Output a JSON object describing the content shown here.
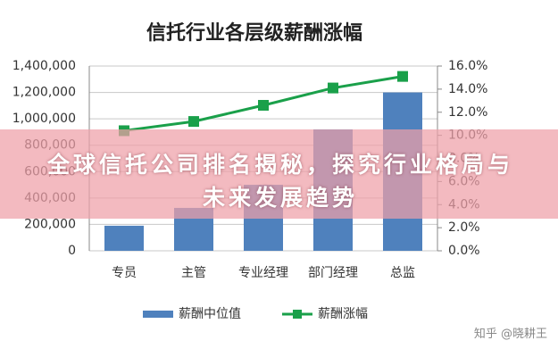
{
  "chart_data": {
    "type": "bar_line",
    "title": "信托行业各层级薪酬涨幅",
    "categories": [
      "专员",
      "主管",
      "专业经理",
      "部门经理",
      "总监"
    ],
    "series": [
      {
        "name": "薪酬中位值",
        "color": "#4f81bd",
        "values": [
          190000,
          325000,
          500000,
          920000,
          1200000
        ]
      },
      {
        "name": "薪酬涨幅",
        "color": "#1aa04a",
        "axis": "y2",
        "values": [
          10.4,
          11.2,
          12.6,
          14.1,
          15.1
        ]
      }
    ],
    "ylim": [
      0,
      1400000
    ],
    "yticks": [
      0,
      {
        "value": 200000,
        "label": "200,000"
      },
      {
        "value": 400000,
        "label": "400,000"
      },
      {
        "value": 600000,
        "label": "600,000"
      },
      {
        "value": 800000,
        "label": "800,000"
      },
      {
        "value": 1000000,
        "label": "1,000,000"
      },
      {
        "value": 1200000,
        "label": "1,200,000"
      },
      {
        "value": 1400000,
        "label": "1,400,000"
      }
    ],
    "y2lim": [
      0,
      16
    ],
    "y2ticks": [
      {
        "value": 0,
        "label": "0.0%"
      },
      {
        "value": 2,
        "label": "2.0%"
      },
      {
        "value": 4,
        "label": "4.0%"
      },
      {
        "value": 6,
        "label": "6.0%"
      },
      {
        "value": 8,
        "label": "8.0%"
      },
      {
        "value": 10,
        "label": "10.0%"
      },
      {
        "value": 12,
        "label": "12.0%"
      },
      {
        "value": 14,
        "label": "14.0%"
      },
      {
        "value": 16,
        "label": "16.0%"
      }
    ],
    "grid": true,
    "legend": "bottom"
  },
  "overlay": {
    "headline": "全球信托公司排名揭秘，探究行业格局与未来发展趋势",
    "watermark": "知乎 @晓耕王"
  }
}
